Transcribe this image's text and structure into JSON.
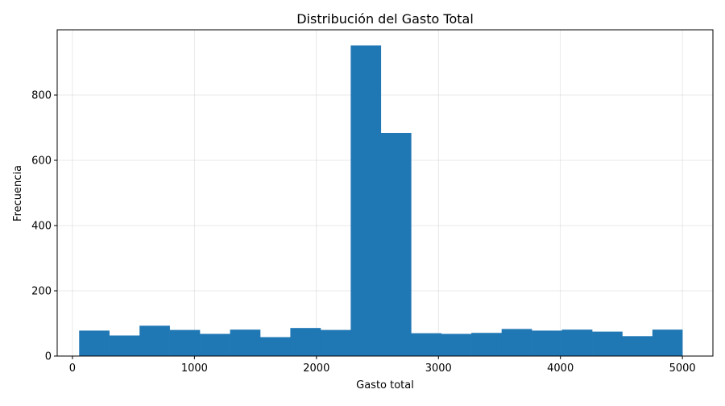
{
  "chart_data": {
    "type": "bar",
    "title": "Distribución del Gasto Total",
    "xlabel": "Gasto total",
    "ylabel": "Frecuencia",
    "xlim": [
      -125,
      5250
    ],
    "ylim": [
      0,
      1000
    ],
    "xticks": [
      0,
      1000,
      2000,
      3000,
      4000,
      5000
    ],
    "yticks": [
      0,
      200,
      400,
      600,
      800
    ],
    "grid": true,
    "bar_color": "#1f77b4",
    "bin_edges": [
      55,
      302,
      550,
      797,
      1044,
      1292,
      1539,
      1786,
      2034,
      2281,
      2528,
      2776,
      3023,
      3270,
      3518,
      3765,
      4012,
      4260,
      4507,
      4754,
      5000
    ],
    "values": [
      78,
      63,
      93,
      80,
      68,
      81,
      58,
      86,
      80,
      952,
      684,
      70,
      68,
      71,
      83,
      78,
      81,
      75,
      61,
      81
    ]
  }
}
